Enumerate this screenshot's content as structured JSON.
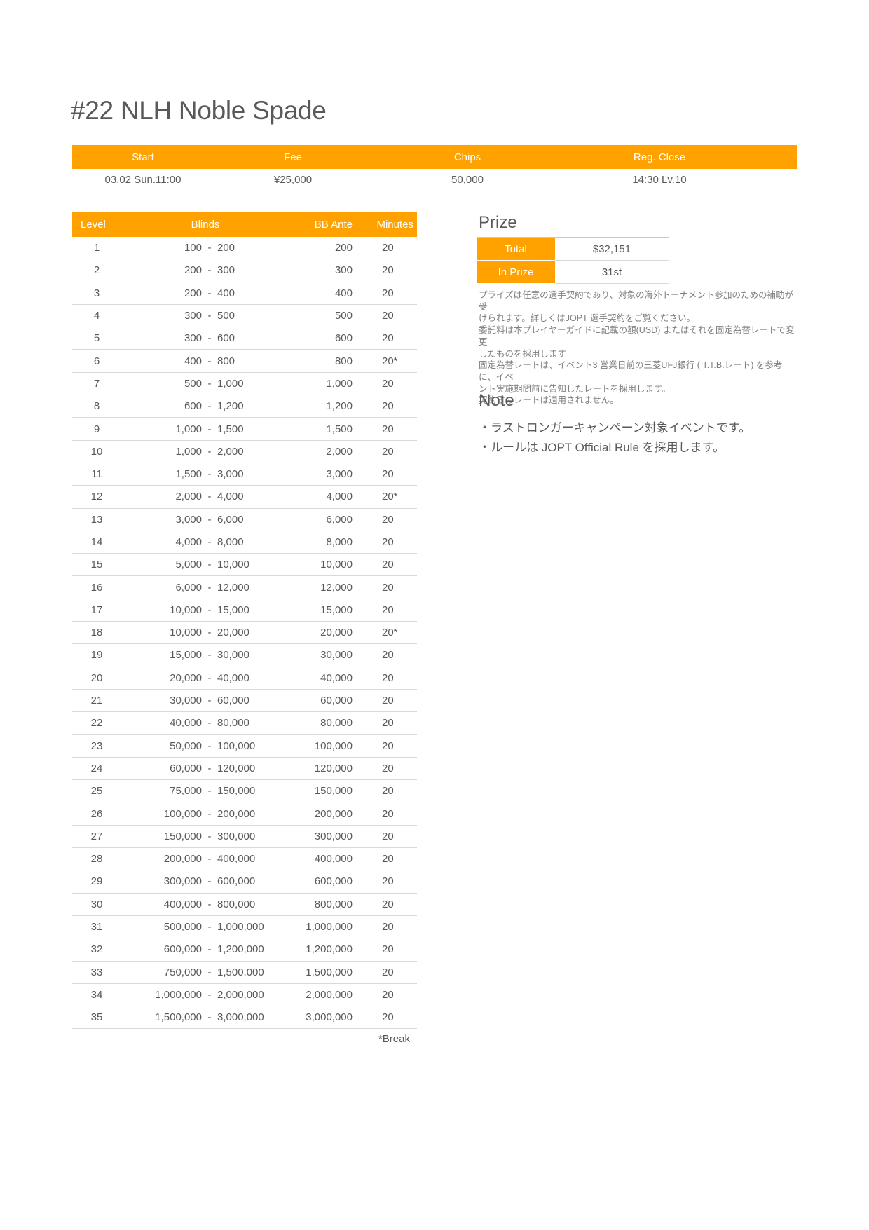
{
  "page": {
    "title": "#22 NLH Noble Spade"
  },
  "colors": {
    "accent": "#FFA200",
    "text": "#595959",
    "muted": "#7F7F7F",
    "divider": "#D9D9D9"
  },
  "info_bar": {
    "columns": [
      {
        "label": "Start",
        "value": "03.02 Sun.11:00"
      },
      {
        "label": "Fee",
        "value": "¥25,000"
      },
      {
        "label": "Chips",
        "value": "50,000"
      },
      {
        "label": "Reg. Close",
        "value": "14:30 Lv.10"
      }
    ]
  },
  "structure_table": {
    "headers": {
      "level": "Level",
      "blinds": "Blinds",
      "bb_ante": "BB Ante",
      "minutes": "Minutes"
    },
    "dash": "-",
    "rows": [
      {
        "level": "1",
        "sb": "100",
        "bb": "200",
        "ante": "200",
        "minutes": "20"
      },
      {
        "level": "2",
        "sb": "200",
        "bb": "300",
        "ante": "300",
        "minutes": "20"
      },
      {
        "level": "3",
        "sb": "200",
        "bb": "400",
        "ante": "400",
        "minutes": "20"
      },
      {
        "level": "4",
        "sb": "300",
        "bb": "500",
        "ante": "500",
        "minutes": "20"
      },
      {
        "level": "5",
        "sb": "300",
        "bb": "600",
        "ante": "600",
        "minutes": "20"
      },
      {
        "level": "6",
        "sb": "400",
        "bb": "800",
        "ante": "800",
        "minutes": "20*"
      },
      {
        "level": "7",
        "sb": "500",
        "bb": "1,000",
        "ante": "1,000",
        "minutes": "20"
      },
      {
        "level": "8",
        "sb": "600",
        "bb": "1,200",
        "ante": "1,200",
        "minutes": "20"
      },
      {
        "level": "9",
        "sb": "1,000",
        "bb": "1,500",
        "ante": "1,500",
        "minutes": "20"
      },
      {
        "level": "10",
        "sb": "1,000",
        "bb": "2,000",
        "ante": "2,000",
        "minutes": "20"
      },
      {
        "level": "11",
        "sb": "1,500",
        "bb": "3,000",
        "ante": "3,000",
        "minutes": "20"
      },
      {
        "level": "12",
        "sb": "2,000",
        "bb": "4,000",
        "ante": "4,000",
        "minutes": "20*"
      },
      {
        "level": "13",
        "sb": "3,000",
        "bb": "6,000",
        "ante": "6,000",
        "minutes": "20"
      },
      {
        "level": "14",
        "sb": "4,000",
        "bb": "8,000",
        "ante": "8,000",
        "minutes": "20"
      },
      {
        "level": "15",
        "sb": "5,000",
        "bb": "10,000",
        "ante": "10,000",
        "minutes": "20"
      },
      {
        "level": "16",
        "sb": "6,000",
        "bb": "12,000",
        "ante": "12,000",
        "minutes": "20"
      },
      {
        "level": "17",
        "sb": "10,000",
        "bb": "15,000",
        "ante": "15,000",
        "minutes": "20"
      },
      {
        "level": "18",
        "sb": "10,000",
        "bb": "20,000",
        "ante": "20,000",
        "minutes": "20*"
      },
      {
        "level": "19",
        "sb": "15,000",
        "bb": "30,000",
        "ante": "30,000",
        "minutes": "20"
      },
      {
        "level": "20",
        "sb": "20,000",
        "bb": "40,000",
        "ante": "40,000",
        "minutes": "20"
      },
      {
        "level": "21",
        "sb": "30,000",
        "bb": "60,000",
        "ante": "60,000",
        "minutes": "20"
      },
      {
        "level": "22",
        "sb": "40,000",
        "bb": "80,000",
        "ante": "80,000",
        "minutes": "20"
      },
      {
        "level": "23",
        "sb": "50,000",
        "bb": "100,000",
        "ante": "100,000",
        "minutes": "20"
      },
      {
        "level": "24",
        "sb": "60,000",
        "bb": "120,000",
        "ante": "120,000",
        "minutes": "20"
      },
      {
        "level": "25",
        "sb": "75,000",
        "bb": "150,000",
        "ante": "150,000",
        "minutes": "20"
      },
      {
        "level": "26",
        "sb": "100,000",
        "bb": "200,000",
        "ante": "200,000",
        "minutes": "20"
      },
      {
        "level": "27",
        "sb": "150,000",
        "bb": "300,000",
        "ante": "300,000",
        "minutes": "20"
      },
      {
        "level": "28",
        "sb": "200,000",
        "bb": "400,000",
        "ante": "400,000",
        "minutes": "20"
      },
      {
        "level": "29",
        "sb": "300,000",
        "bb": "600,000",
        "ante": "600,000",
        "minutes": "20"
      },
      {
        "level": "30",
        "sb": "400,000",
        "bb": "800,000",
        "ante": "800,000",
        "minutes": "20"
      },
      {
        "level": "31",
        "sb": "500,000",
        "bb": "1,000,000",
        "ante": "1,000,000",
        "minutes": "20"
      },
      {
        "level": "32",
        "sb": "600,000",
        "bb": "1,200,000",
        "ante": "1,200,000",
        "minutes": "20"
      },
      {
        "level": "33",
        "sb": "750,000",
        "bb": "1,500,000",
        "ante": "1,500,000",
        "minutes": "20"
      },
      {
        "level": "34",
        "sb": "1,000,000",
        "bb": "2,000,000",
        "ante": "2,000,000",
        "minutes": "20"
      },
      {
        "level": "35",
        "sb": "1,500,000",
        "bb": "3,000,000",
        "ante": "3,000,000",
        "minutes": "20"
      }
    ],
    "footnote": "*Break"
  },
  "prize": {
    "heading": "Prize",
    "rows": [
      {
        "label": "Total",
        "value": "$32,151"
      },
      {
        "label": "In Prize",
        "value": "31st"
      }
    ],
    "disclaimer_lines": [
      "プライズは任意の選手契約であり、対象の海外トーナメント参加のための補助が受",
      "けられます。詳しくはJOPT 選手契約をご覧ください。",
      "委託料は本プレイヤーガイドに記載の額(USD) またはそれを固定為替レートで変更",
      "したものを採用します。",
      "固定為替レートは、イベント3 営業日前の三菱UFJ銀行 ( T.T.B.レート) を参考に、イベ",
      "ント実施期間前に告知したレートを採用します。",
      "契約日のレートは適用されません。"
    ]
  },
  "note": {
    "heading": "Note",
    "items": [
      "・ラストロンガーキャンペーン対象イベントです。",
      "・ルールは JOPT Official Rule を採用します。"
    ]
  }
}
